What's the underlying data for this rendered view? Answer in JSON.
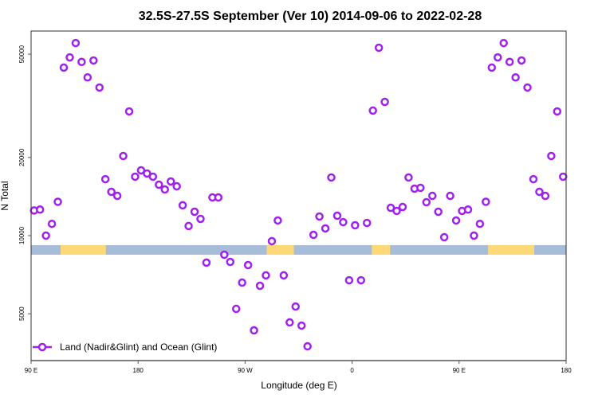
{
  "chart_data": {
    "type": "scatter",
    "title": "32.5S-27.5S September (Ver 10)   2014-09-06 to 2022-02-28",
    "xlabel": "Longitude (deg E)",
    "ylabel": "N Total",
    "y_scale": "log",
    "xlim": [
      90,
      540
    ],
    "ylim": [
      3300,
      61400
    ],
    "x_ticks": [
      {
        "value": 90,
        "label": "90 E"
      },
      {
        "value": 180,
        "label": "180"
      },
      {
        "value": 270,
        "label": "90 W"
      },
      {
        "value": 360,
        "label": "0"
      },
      {
        "value": 450,
        "label": "90 E"
      },
      {
        "value": 540,
        "label": "180"
      }
    ],
    "y_ticks": [
      {
        "value": 5000,
        "label": "5000"
      },
      {
        "value": 10000,
        "label": "10000"
      },
      {
        "value": 20000,
        "label": "20000"
      },
      {
        "value": 50000,
        "label": "50000"
      }
    ],
    "grid": false,
    "legend": {
      "position": "bottom-left",
      "entries": [
        "Land (Nadir&Glint) and Ocean (Glint)"
      ]
    },
    "colors": {
      "series": "#a020f0",
      "ocean": "#a7bcd9",
      "land": "#fdd876"
    },
    "land_segments": [
      [
        114.8,
        152.9
      ],
      [
        288.2,
        311
      ],
      [
        376.6,
        392
      ],
      [
        474.4,
        513.2
      ]
    ],
    "series": [
      {
        "name": "Land (Nadir&Glint) and Ocean (Glint)",
        "x": [
          92.5,
          97.5,
          102.5,
          107.5,
          112.5,
          117.5,
          122.5,
          127.5,
          132.5,
          137.5,
          142.5,
          147.5,
          152.5,
          157.5,
          162.5,
          167.5,
          172.5,
          177.5,
          182.5,
          187.5,
          192.5,
          197.5,
          202.5,
          207.5,
          212.5,
          217.5,
          222.5,
          227.5,
          232.5,
          237.5,
          242.5,
          247.5,
          252.5,
          257.5,
          262.5,
          267.5,
          272.5,
          277.5,
          282.5,
          287.5,
          292.5,
          297.5,
          302.5,
          307.5,
          312.5,
          317.5,
          322.5,
          327.5,
          332.5,
          337.5,
          342.5,
          347.5,
          352.5,
          357.5,
          362.5,
          367.5,
          372.5,
          377.5,
          382.5,
          387.5,
          392.5,
          397.5,
          402.5,
          407.5,
          412.5,
          417.5,
          422.5,
          427.5,
          432.5,
          437.5,
          442.5,
          447.5,
          452.5,
          457.5,
          462.5,
          467.5,
          472.5,
          477.5,
          482.5,
          487.5,
          492.5,
          497.5,
          502.5,
          507.5,
          512.5,
          517.5,
          522.5,
          527.5,
          532.5,
          537.5
        ],
        "y": [
          12500,
          12600,
          10000,
          11100,
          13500,
          44400,
          48600,
          55200,
          46700,
          40700,
          47300,
          37200,
          16500,
          14750,
          14230,
          20270,
          30100,
          16870,
          17850,
          17350,
          16870,
          15710,
          15060,
          16170,
          15490,
          13090,
          10890,
          12360,
          11600,
          7870,
          14030,
          14030,
          8440,
          7920,
          5220,
          6590,
          7700,
          4315,
          6410,
          7030,
          9520,
          11440,
          7030,
          4630,
          5330,
          4500,
          3745,
          10070,
          11850,
          10660,
          16750,
          11930,
          11270,
          6730,
          10960,
          6730,
          11190,
          30320,
          52960,
          32750,
          12800,
          12450,
          12890,
          16750,
          15170,
          15280,
          13450,
          14230,
          12360,
          9860,
          14230,
          11440,
          12450,
          12600,
          10000,
          11100,
          13500,
          44400,
          48600,
          55200,
          46700,
          40700,
          47300,
          37200,
          16500,
          14750,
          14230,
          20270,
          30100,
          16870
        ]
      }
    ]
  }
}
